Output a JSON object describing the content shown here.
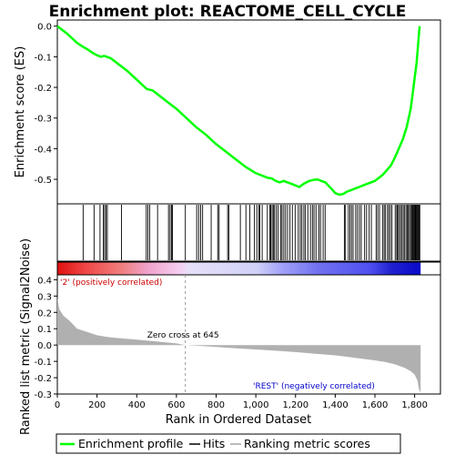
{
  "chart_data": {
    "type": "line",
    "title": "Enrichment plot: REACTOME_CELL_CYCLE",
    "es_panel": {
      "ylabel": "Enrichment score (ES)",
      "ylim": [
        -0.58,
        0.02
      ],
      "yticks": [
        "0.0",
        "-0.1",
        "-0.2",
        "-0.3",
        "-0.4",
        "-0.5"
      ],
      "ytick_values": [
        0.0,
        -0.1,
        -0.2,
        -0.3,
        -0.4,
        -0.5
      ],
      "series": [
        {
          "name": "Enrichment profile",
          "color": "#00ff00",
          "x": [
            0,
            50,
            100,
            130,
            150,
            180,
            200,
            220,
            235,
            250,
            270,
            300,
            350,
            400,
            450,
            480,
            500,
            550,
            600,
            650,
            700,
            750,
            800,
            850,
            900,
            950,
            1000,
            1020,
            1040,
            1060,
            1080,
            1100,
            1120,
            1140,
            1160,
            1180,
            1200,
            1220,
            1240,
            1255,
            1270,
            1290,
            1310,
            1330,
            1350,
            1380,
            1400,
            1420,
            1440,
            1460,
            1480,
            1500,
            1520,
            1540,
            1560,
            1580,
            1600,
            1620,
            1640,
            1660,
            1680,
            1700,
            1720,
            1740,
            1760,
            1780,
            1790,
            1800,
            1810,
            1815,
            1820,
            1825
          ],
          "y": [
            0.0,
            -0.025,
            -0.055,
            -0.068,
            -0.075,
            -0.088,
            -0.095,
            -0.1,
            -0.097,
            -0.1,
            -0.105,
            -0.12,
            -0.145,
            -0.175,
            -0.205,
            -0.21,
            -0.22,
            -0.245,
            -0.27,
            -0.3,
            -0.33,
            -0.355,
            -0.385,
            -0.41,
            -0.435,
            -0.46,
            -0.48,
            -0.485,
            -0.49,
            -0.495,
            -0.497,
            -0.505,
            -0.51,
            -0.505,
            -0.51,
            -0.515,
            -0.52,
            -0.525,
            -0.515,
            -0.51,
            -0.505,
            -0.502,
            -0.5,
            -0.505,
            -0.51,
            -0.53,
            -0.545,
            -0.55,
            -0.548,
            -0.54,
            -0.535,
            -0.53,
            -0.525,
            -0.52,
            -0.515,
            -0.51,
            -0.505,
            -0.495,
            -0.485,
            -0.47,
            -0.455,
            -0.43,
            -0.4,
            -0.37,
            -0.33,
            -0.27,
            -0.22,
            -0.17,
            -0.12,
            -0.08,
            -0.04,
            0.0
          ]
        }
      ]
    },
    "hits_panel": {
      "legend_name": "Hits",
      "hit_positions": [
        130,
        185,
        215,
        232,
        238,
        245,
        252,
        323,
        448,
        456,
        465,
        505,
        560,
        568,
        575,
        580,
        645,
        702,
        712,
        722,
        732,
        775,
        808,
        815,
        858,
        864,
        922,
        950,
        970,
        993,
        1005,
        1015,
        1020,
        1032,
        1058,
        1070,
        1075,
        1082,
        1088,
        1094,
        1103,
        1112,
        1126,
        1132,
        1141,
        1150,
        1160,
        1172,
        1184,
        1198,
        1214,
        1224,
        1232,
        1242,
        1250,
        1262,
        1275,
        1285,
        1293,
        1303,
        1318,
        1326,
        1339,
        1349,
        1446,
        1452,
        1466,
        1474,
        1482,
        1490,
        1503,
        1512,
        1522,
        1531,
        1548,
        1558,
        1571,
        1582,
        1606,
        1614,
        1623,
        1638,
        1646,
        1652,
        1663,
        1670,
        1678,
        1686,
        1702,
        1710,
        1714,
        1720,
        1728,
        1734,
        1742,
        1748,
        1756,
        1762,
        1768,
        1774,
        1780,
        1786,
        1790,
        1794,
        1798,
        1802,
        1806,
        1810,
        1814,
        1818,
        1822,
        1826
      ]
    },
    "metric_panel": {
      "ylabel": "Ranked list metric (Signal2Noise)",
      "ylim": [
        -0.3,
        0.43
      ],
      "yticks": [
        "0.4",
        "0.3",
        "0.2",
        "0.1",
        "0.0",
        "-0.1",
        "-0.2",
        "-0.3"
      ],
      "ytick_values": [
        0.4,
        0.3,
        0.2,
        0.1,
        0.0,
        -0.1,
        -0.2,
        -0.3
      ],
      "legend_name": "Ranking metric scores",
      "x": [
        0,
        10,
        30,
        60,
        100,
        150,
        200,
        250,
        300,
        400,
        500,
        600,
        645,
        700,
        800,
        900,
        1000,
        1100,
        1200,
        1300,
        1400,
        1500,
        1600,
        1650,
        1700,
        1750,
        1780,
        1800,
        1815,
        1820,
        1825,
        1830
      ],
      "values": [
        0.29,
        0.22,
        0.18,
        0.15,
        0.1,
        0.08,
        0.06,
        0.05,
        0.043,
        0.033,
        0.022,
        0.01,
        0.0,
        -0.004,
        -0.012,
        -0.02,
        -0.027,
        -0.035,
        -0.043,
        -0.053,
        -0.063,
        -0.078,
        -0.094,
        -0.104,
        -0.118,
        -0.14,
        -0.16,
        -0.18,
        -0.22,
        -0.26,
        -0.28,
        -0.29
      ],
      "zero_cross_label": "Zero cross at 645",
      "zero_cross": 645,
      "pos_label": "'2' (positively correlated)",
      "neg_label": "'REST' (negatively correlated)"
    },
    "xlabel": "Rank in Ordered Dataset",
    "xlim": [
      0,
      1930
    ],
    "xticks": [
      "0",
      "200",
      "400",
      "600",
      "800",
      "1,000",
      "1,200",
      "1,400",
      "1,600",
      "1,800"
    ],
    "xtick_values": [
      0,
      200,
      400,
      600,
      800,
      1000,
      1200,
      1400,
      1600,
      1800
    ],
    "dataset_size": 1830,
    "legend": {
      "placement": "bottom",
      "items": [
        "Enrichment profile",
        "Hits",
        "Ranking metric scores"
      ]
    },
    "colors": {
      "profile": "#00ff00",
      "positive": "#ff0000",
      "negative": "#0000ff",
      "metric_fill": "#b0b0b0",
      "pos_label": "#cc0000",
      "neg_label": "#0000cc"
    }
  }
}
